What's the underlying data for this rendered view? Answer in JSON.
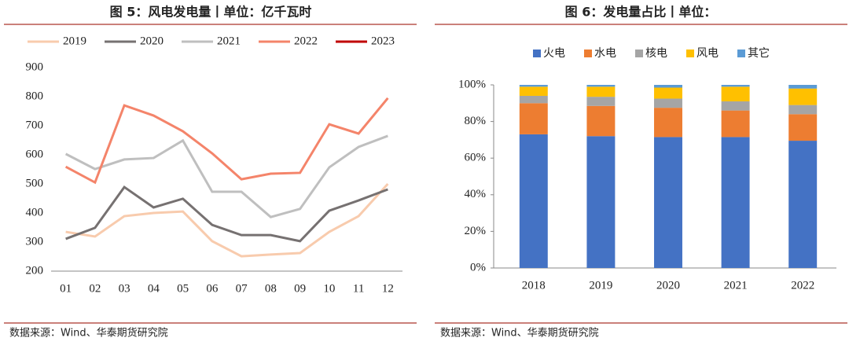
{
  "chart_data": [
    {
      "type": "line",
      "title": "图 5：风电发电量丨单位：亿千瓦时",
      "source": "数据来源：Wind、华泰期货研究院",
      "categories": [
        "01",
        "02",
        "03",
        "04",
        "05",
        "06",
        "07",
        "08",
        "09",
        "10",
        "11",
        "12"
      ],
      "ylim": [
        200,
        900
      ],
      "yticks": [
        200,
        300,
        400,
        500,
        600,
        700,
        800,
        900
      ],
      "series": [
        {
          "name": "2019",
          "color": "#f8cbad",
          "values": [
            335,
            319,
            389,
            400,
            405,
            303,
            251,
            257,
            262,
            335,
            389,
            500
          ]
        },
        {
          "name": "2020",
          "color": "#767171",
          "values": [
            311,
            349,
            489,
            419,
            449,
            359,
            324,
            324,
            303,
            408,
            443,
            481
          ]
        },
        {
          "name": "2021",
          "color": "#bfbfbf",
          "values": [
            603,
            551,
            584,
            589,
            649,
            473,
            473,
            386,
            414,
            557,
            627,
            665
          ]
        },
        {
          "name": "2022",
          "color": "#f4846a",
          "values": [
            559,
            505,
            770,
            735,
            681,
            605,
            516,
            535,
            538,
            705,
            673,
            795
          ]
        },
        {
          "name": "2023",
          "color": "#c00000",
          "values": [
            null,
            null,
            null,
            null,
            null,
            null,
            null,
            null,
            null,
            null,
            null,
            null
          ]
        }
      ]
    },
    {
      "type": "bar",
      "stacked": true,
      "title": "图 6：发电量占比丨单位：",
      "source": "数据来源：Wind、华泰期货研究院",
      "categories": [
        "2018",
        "2019",
        "2020",
        "2021",
        "2022"
      ],
      "ylim": [
        0,
        100
      ],
      "yticks": [
        {
          "value": 0,
          "label": "0%"
        },
        {
          "value": 20,
          "label": "20%"
        },
        {
          "value": 40,
          "label": "40%"
        },
        {
          "value": 60,
          "label": "60%"
        },
        {
          "value": 80,
          "label": "80%"
        },
        {
          "value": 100,
          "label": "100%"
        }
      ],
      "series": [
        {
          "name": "火电",
          "color": "#4472c4",
          "values": [
            73,
            72,
            71.5,
            71.5,
            69.5
          ]
        },
        {
          "name": "水电",
          "color": "#ed7d31",
          "values": [
            17,
            16.5,
            16,
            14.5,
            14.5
          ]
        },
        {
          "name": "核电",
          "color": "#a5a5a5",
          "values": [
            4,
            5,
            5,
            5,
            5
          ]
        },
        {
          "name": "风电",
          "color": "#ffc000",
          "values": [
            5,
            5.5,
            6,
            8,
            9
          ]
        },
        {
          "name": "其它",
          "color": "#5b9bd5",
          "values": [
            1,
            1,
            1.5,
            1,
            2
          ]
        }
      ]
    }
  ]
}
